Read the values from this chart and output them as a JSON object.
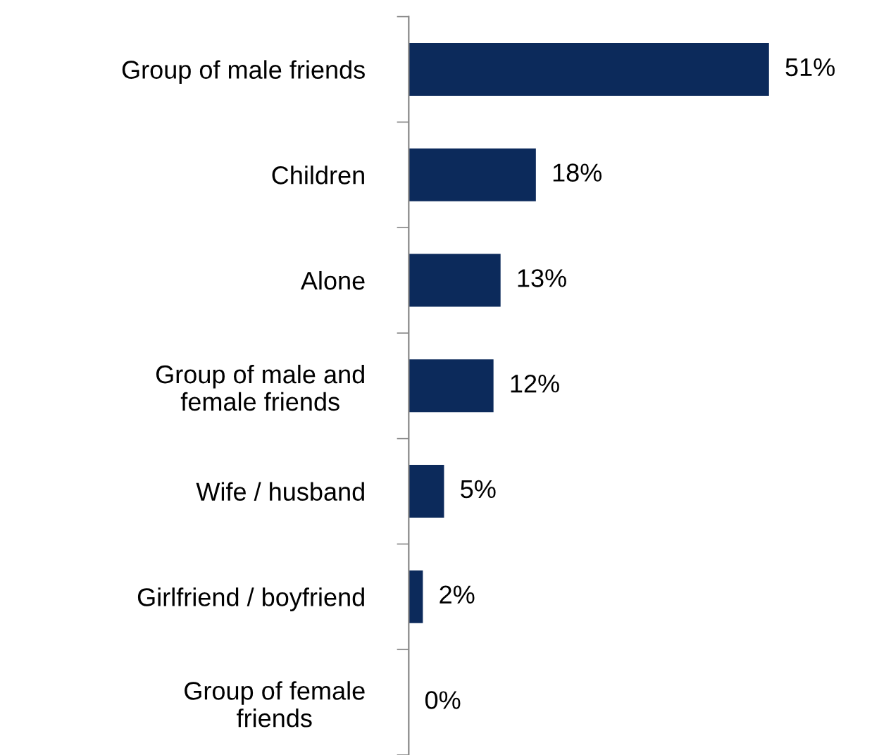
{
  "chart_data": {
    "type": "bar",
    "orientation": "horizontal",
    "categories": [
      "Group of male friends",
      "Children",
      "Alone",
      "Group of male and\nfemale friends",
      "Wife / husband",
      "Girlfriend / boyfriend",
      "Group of female\nfriends"
    ],
    "values": [
      51,
      18,
      13,
      12,
      5,
      2,
      0
    ],
    "value_labels": [
      "51%",
      "18%",
      "13%",
      "12%",
      "5%",
      "2%",
      "0%"
    ],
    "color": "#0c2a5b"
  }
}
